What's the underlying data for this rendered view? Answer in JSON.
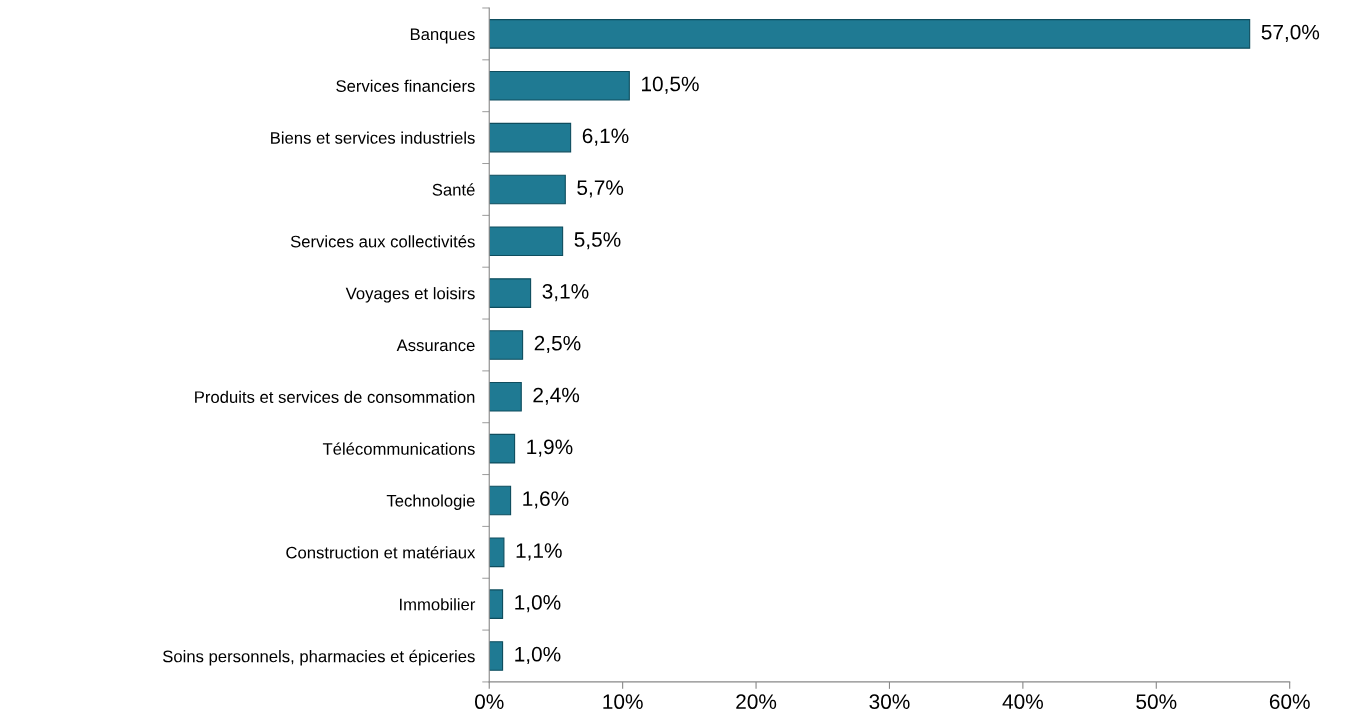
{
  "chart_data": {
    "type": "bar",
    "orientation": "horizontal",
    "categories": [
      "Banques",
      "Services financiers",
      "Biens et services industriels",
      "Santé",
      "Services aux collectivités",
      "Voyages et loisirs",
      "Assurance",
      "Produits et services de consommation",
      "Télécommunications",
      "Technologie",
      "Construction et matériaux",
      "Immobilier",
      "Soins personnels, pharmacies et épiceries"
    ],
    "values": [
      57.0,
      10.5,
      6.1,
      5.7,
      5.5,
      3.1,
      2.5,
      2.4,
      1.9,
      1.6,
      1.1,
      1.0,
      1.0
    ],
    "value_labels": [
      "57,0%",
      "10,5%",
      "6,1%",
      "5,7%",
      "5,5%",
      "3,1%",
      "2,5%",
      "2,4%",
      "1,9%",
      "1,6%",
      "1,1%",
      "1,0%",
      "1,0%"
    ],
    "color": "#1f7a93",
    "xlim": [
      0,
      60
    ],
    "xticks": [
      {
        "value": 0,
        "label": "0%"
      },
      {
        "value": 10,
        "label": "10%"
      },
      {
        "value": 20,
        "label": "20%"
      },
      {
        "value": 30,
        "label": "30%"
      },
      {
        "value": 40,
        "label": "40%"
      },
      {
        "value": 50,
        "label": "50%"
      },
      {
        "value": 60,
        "label": "60%"
      }
    ],
    "grid": false,
    "legend": false
  }
}
